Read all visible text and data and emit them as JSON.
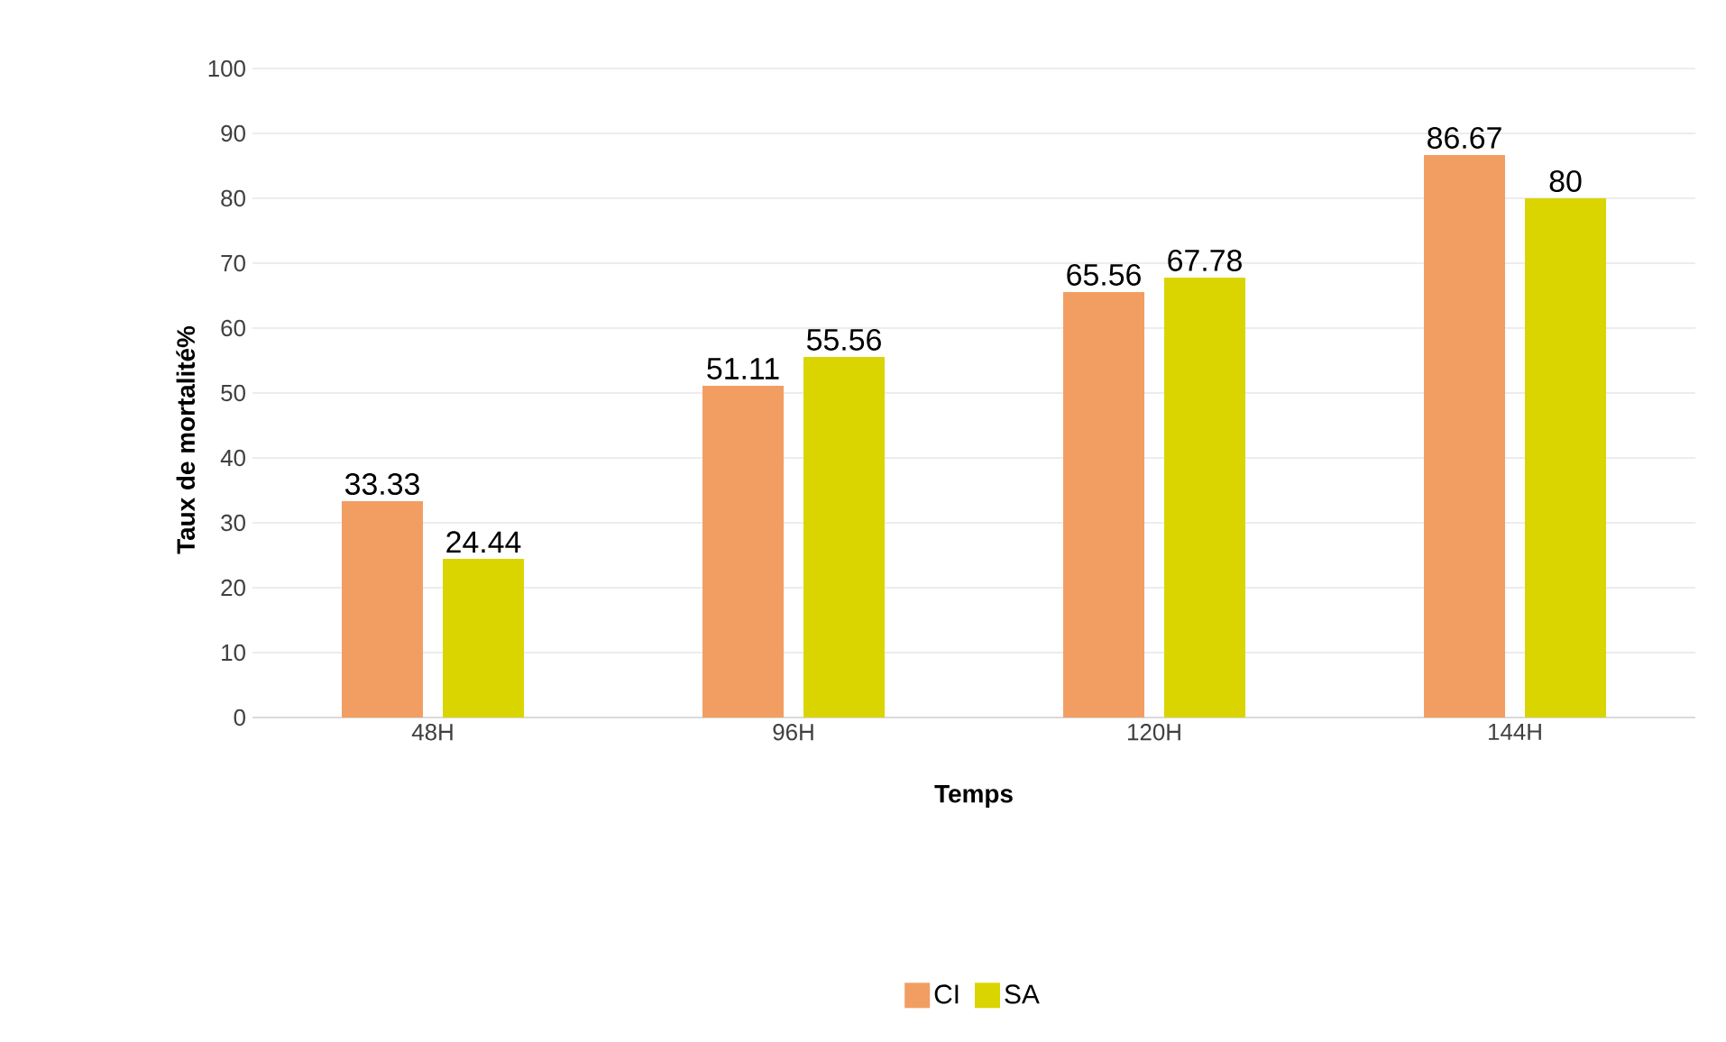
{
  "chart_data": {
    "type": "bar",
    "xlabel": "Temps",
    "ylabel": "Taux de mortalité%",
    "categories": [
      "48H",
      "96H",
      "120H",
      "144H"
    ],
    "series": [
      {
        "name": "CI",
        "color": "#f29e63",
        "values": [
          33.33,
          51.11,
          65.56,
          86.67
        ]
      },
      {
        "name": "SA",
        "color": "#dad500",
        "values": [
          24.44,
          55.56,
          67.78,
          80
        ]
      }
    ],
    "ylim": [
      0,
      100
    ],
    "yticks": [
      0,
      10,
      20,
      30,
      40,
      50,
      60,
      70,
      80,
      90,
      100
    ],
    "grid": "y",
    "legend": "bottom",
    "data_labels": true
  }
}
